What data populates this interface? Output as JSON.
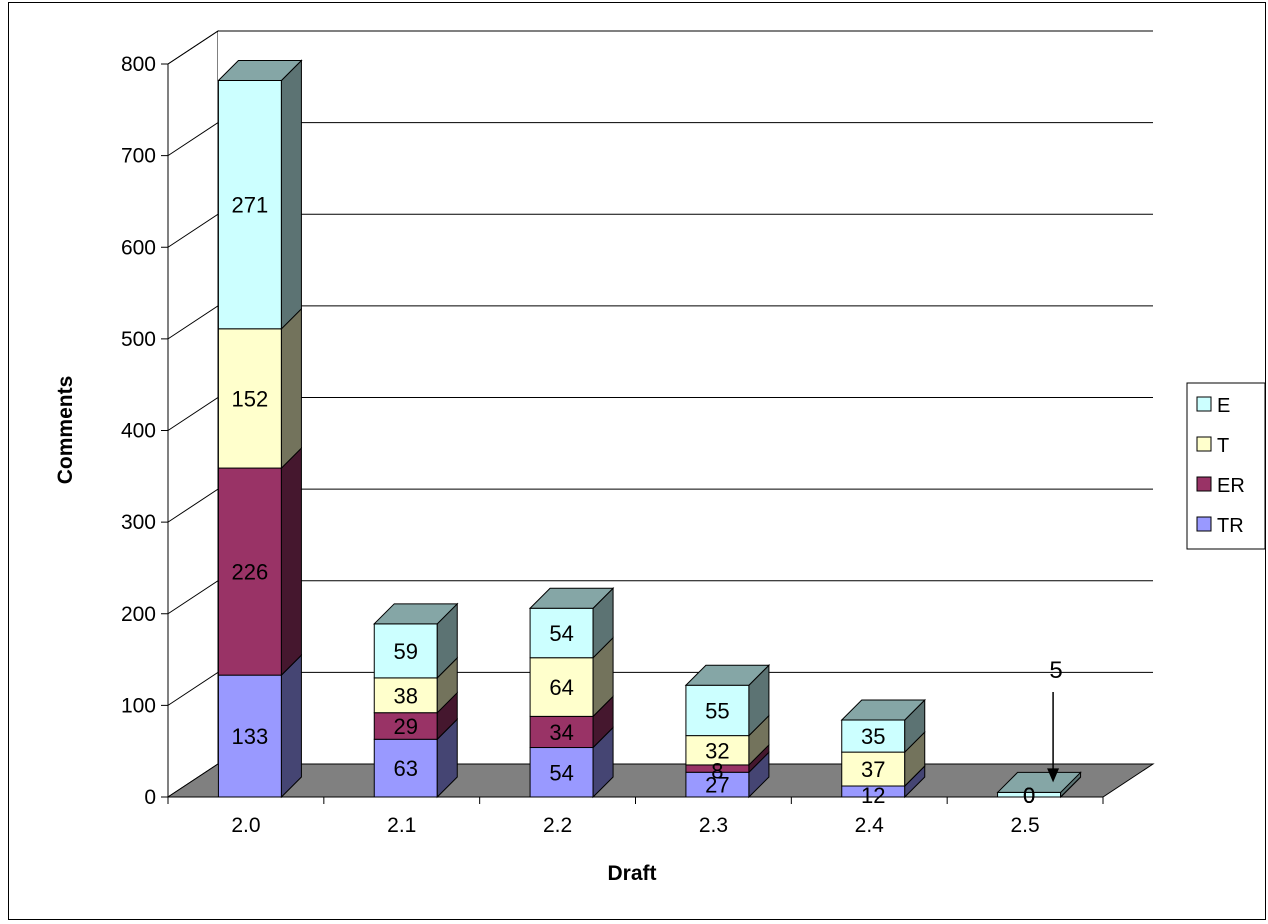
{
  "chart_data": {
    "type": "bar",
    "stacked": true,
    "three_d": true,
    "title": "",
    "xlabel": "Draft",
    "ylabel": "Comments",
    "ylim": [
      0,
      800
    ],
    "yticks": [
      0,
      100,
      200,
      300,
      400,
      500,
      600,
      700,
      800
    ],
    "categories": [
      "2.0",
      "2.1",
      "2.2",
      "2.3",
      "2.4",
      "2.5"
    ],
    "series": [
      {
        "name": "TR",
        "color": "#9999ff",
        "values": [
          133,
          63,
          54,
          27,
          12,
          0
        ],
        "labels": [
          "133",
          "63",
          "54",
          "27",
          "12",
          "0"
        ]
      },
      {
        "name": "ER",
        "color": "#993366",
        "values": [
          226,
          29,
          34,
          8,
          0,
          0
        ],
        "labels": [
          "226",
          "29",
          "34",
          "8",
          "",
          "0"
        ]
      },
      {
        "name": "T",
        "color": "#ffffcc",
        "values": [
          152,
          38,
          64,
          32,
          37,
          0
        ],
        "labels": [
          "152",
          "38",
          "64",
          "32",
          "37",
          "0"
        ]
      },
      {
        "name": "E",
        "color": "#ccffff",
        "values": [
          271,
          59,
          54,
          55,
          35,
          5
        ],
        "labels": [
          "271",
          "59",
          "54",
          "55",
          "35",
          ""
        ]
      }
    ],
    "legend_order": [
      "E",
      "T",
      "ER",
      "TR"
    ],
    "legend_position": "right",
    "annotation": {
      "text": "5",
      "category": "2.5"
    },
    "grid": true
  }
}
